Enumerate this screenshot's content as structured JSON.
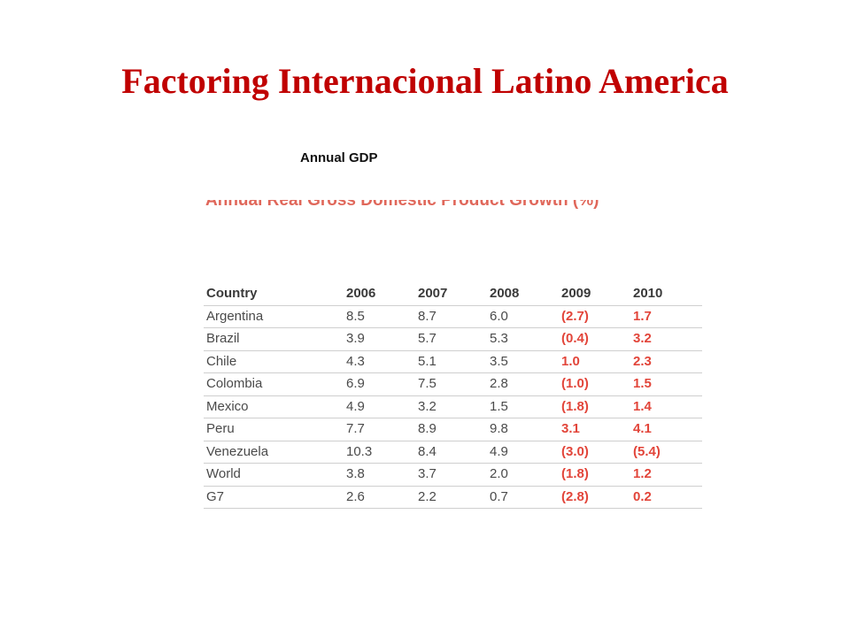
{
  "slide": {
    "title": "Factoring Internacional Latino America",
    "subtitle": "Annual GDP"
  },
  "table": {
    "title": "Annual Real Gross Domestic Product Growth (%)",
    "headers": [
      "Country",
      "2006",
      "2007",
      "2008",
      "2009",
      "2010"
    ],
    "rows": [
      [
        "Argentina",
        "8.5",
        "8.7",
        "6.0",
        "(2.7)",
        "1.7"
      ],
      [
        "Brazil",
        "3.9",
        "5.7",
        "5.3",
        "(0.4)",
        "3.2"
      ],
      [
        "Chile",
        "4.3",
        "5.1",
        "3.5",
        "1.0",
        "2.3"
      ],
      [
        "Colombia",
        "6.9",
        "7.5",
        "2.8",
        "(1.0)",
        "1.5"
      ],
      [
        "Mexico",
        "4.9",
        "3.2",
        "1.5",
        "(1.8)",
        "1.4"
      ],
      [
        "Peru",
        "7.7",
        "8.9",
        "9.8",
        "3.1",
        "4.1"
      ],
      [
        "Venezuela",
        "10.3",
        "8.4",
        "4.9",
        "(3.0)",
        "(5.4)"
      ],
      [
        "World",
        "3.8",
        "3.7",
        "2.0",
        "(1.8)",
        "1.2"
      ],
      [
        "G7",
        "2.6",
        "2.2",
        "0.7",
        "(2.8)",
        "0.2"
      ]
    ]
  },
  "colors": {
    "title": "#c00000",
    "highlight": "#e2453a",
    "table_title": "#e0675a"
  }
}
